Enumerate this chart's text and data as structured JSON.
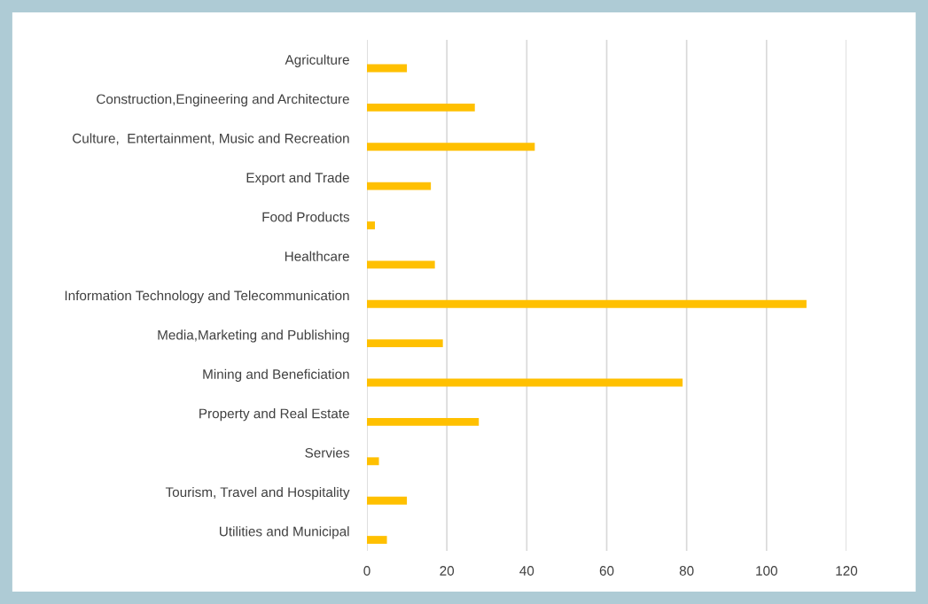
{
  "chart_data": {
    "type": "bar",
    "orientation": "horizontal",
    "categories": [
      "Agriculture",
      "Construction,Engineering and Architecture",
      "Culture,  Entertainment, Music and Recreation",
      "Export and Trade",
      "Food Products",
      "Healthcare",
      "Information Technology and Telecommunication",
      "Media,Marketing and Publishing",
      "Mining and Beneficiation",
      "Property and Real Estate",
      "Servies",
      "Tourism, Travel and Hospitality",
      "Utilities and Municipal"
    ],
    "values": [
      10,
      27,
      42,
      16,
      2,
      17,
      110,
      19,
      79,
      28,
      3,
      10,
      5
    ],
    "color": "#ffc000",
    "xlim": [
      0,
      120
    ],
    "xticks": [
      0,
      20,
      40,
      60,
      80,
      100,
      120
    ],
    "grid": "x"
  }
}
